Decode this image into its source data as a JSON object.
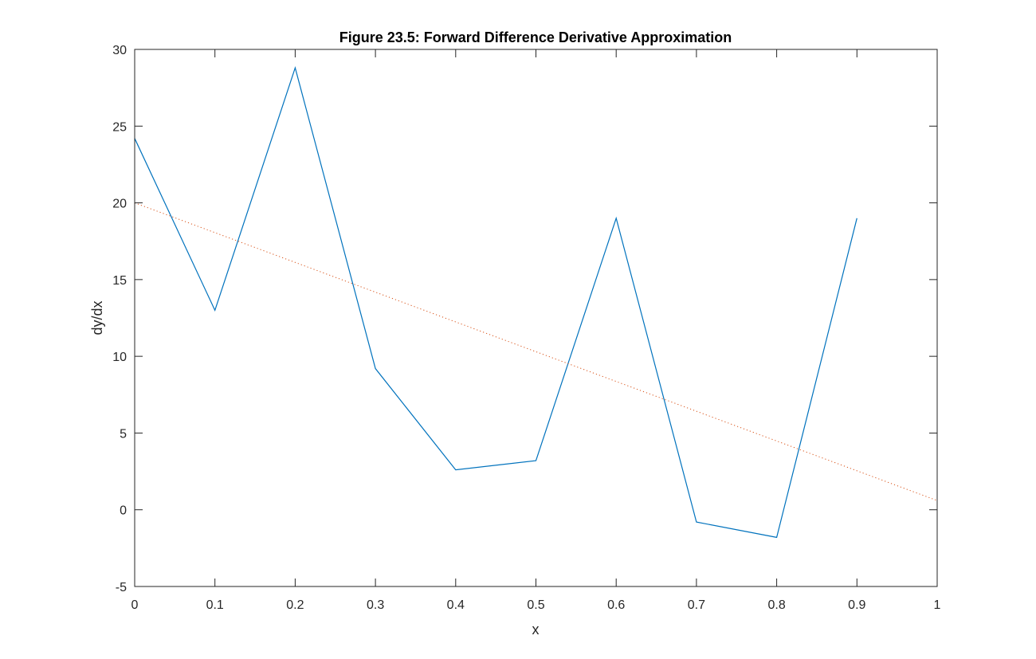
{
  "chart_data": {
    "type": "line",
    "title": "Figure 23.5: Forward Difference Derivative Approximation",
    "xlabel": "x",
    "ylabel": "dy/dx",
    "xlim": [
      0,
      1
    ],
    "ylim": [
      -5,
      30
    ],
    "xticks": [
      0,
      0.1,
      0.2,
      0.3,
      0.4,
      0.5,
      0.6,
      0.7,
      0.8,
      0.9,
      1
    ],
    "xtick_labels": [
      "0",
      "0.1",
      "0.2",
      "0.3",
      "0.4",
      "0.5",
      "0.6",
      "0.7",
      "0.8",
      "0.9",
      "1"
    ],
    "yticks": [
      -5,
      0,
      5,
      10,
      15,
      20,
      25,
      30
    ],
    "ytick_labels": [
      "-5",
      "0",
      "5",
      "10",
      "15",
      "20",
      "25",
      "30"
    ],
    "grid": false,
    "legend": "none",
    "series": [
      {
        "style": "solid",
        "color": "#0072BD",
        "x": [
          0,
          0.1,
          0.2,
          0.3,
          0.4,
          0.5,
          0.6,
          0.7,
          0.8,
          0.9
        ],
        "y": [
          24.2,
          13.0,
          28.8,
          9.2,
          2.6,
          3.2,
          19.0,
          -0.8,
          -1.8,
          19.0
        ]
      },
      {
        "style": "dotted",
        "color": "#D95319",
        "x": [
          0,
          1
        ],
        "y": [
          20.0,
          0.6
        ]
      }
    ]
  }
}
